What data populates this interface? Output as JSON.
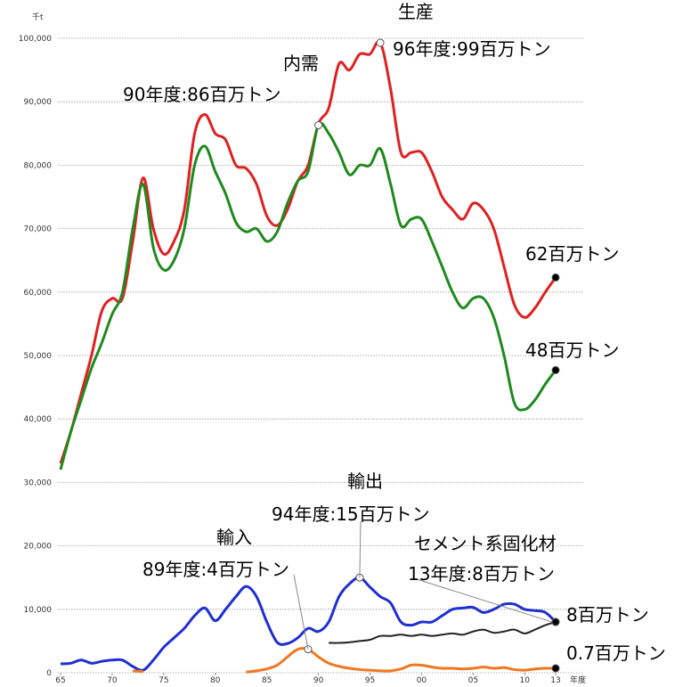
{
  "chart_data": {
    "type": "line",
    "y_axis_label": "千t",
    "x_axis_label": "年度",
    "x": [
      1965,
      1966,
      1967,
      1968,
      1969,
      1970,
      1971,
      1972,
      1973,
      1974,
      1975,
      1976,
      1977,
      1978,
      1979,
      1980,
      1981,
      1982,
      1983,
      1984,
      1985,
      1986,
      1987,
      1988,
      1989,
      1990,
      1991,
      1992,
      1993,
      1994,
      1995,
      1996,
      1997,
      1998,
      1999,
      2000,
      2001,
      2002,
      2003,
      2004,
      2005,
      2006,
      2007,
      2008,
      2009,
      2010,
      2011,
      2012,
      2013
    ],
    "series": [
      {
        "name": "生産",
        "color": "#e02020",
        "values": [
          33000,
          38000,
          44000,
          50000,
          57000,
          59000,
          59000,
          68000,
          78000,
          70000,
          66000,
          68000,
          73000,
          85000,
          88000,
          85000,
          84000,
          80000,
          79500,
          77000,
          72000,
          70500,
          73000,
          77500,
          80000,
          86500,
          89000,
          96000,
          95000,
          97500,
          97500,
          99300,
          92000,
          82000,
          82000,
          82000,
          79000,
          75000,
          73000,
          71500,
          74000,
          73000,
          70000,
          64000,
          58000,
          56000,
          57500,
          60000,
          62300
        ]
      },
      {
        "name": "内需",
        "color": "#1e8a1e",
        "values": [
          32000,
          38000,
          43000,
          48000,
          52000,
          56500,
          60000,
          70000,
          77000,
          67000,
          63500,
          65000,
          70000,
          80000,
          83000,
          79000,
          75500,
          71000,
          69500,
          70000,
          68000,
          69500,
          74000,
          77500,
          79000,
          86300,
          85000,
          82000,
          78500,
          80000,
          80000,
          82600,
          77000,
          70500,
          71500,
          71500,
          68000,
          64000,
          60000,
          57500,
          59000,
          59000,
          56000,
          50000,
          42500,
          41500,
          43000,
          45500,
          47700
        ]
      },
      {
        "name": "輸出",
        "color": "#1f2fd0",
        "values": [
          1400,
          1500,
          2000,
          1500,
          1800,
          2000,
          2000,
          1000,
          400,
          2000,
          4000,
          5500,
          7000,
          9000,
          10200,
          8200,
          10000,
          12000,
          13600,
          12000,
          8000,
          4800,
          4600,
          5500,
          7000,
          6500,
          8000,
          12000,
          14000,
          15000,
          13500,
          12000,
          11000,
          8000,
          7500,
          8000,
          8000,
          9000,
          10000,
          10200,
          10300,
          9500,
          10000,
          10800,
          10800,
          10000,
          9800,
          9500,
          8000
        ]
      },
      {
        "name": "輸入",
        "color": "#f07820",
        "values": [
          null,
          null,
          null,
          null,
          null,
          null,
          null,
          300,
          200,
          null,
          null,
          null,
          null,
          null,
          null,
          null,
          null,
          null,
          100,
          300,
          600,
          1200,
          2500,
          3700,
          3700,
          2500,
          1500,
          1000,
          700,
          500,
          400,
          300,
          300,
          600,
          1200,
          1200,
          900,
          700,
          700,
          600,
          700,
          900,
          700,
          800,
          500,
          400,
          600,
          700,
          700
        ]
      },
      {
        "name": "セメント系固化材",
        "color": "#222222",
        "values": [
          null,
          null,
          null,
          null,
          null,
          null,
          null,
          null,
          null,
          null,
          null,
          null,
          null,
          null,
          null,
          null,
          null,
          null,
          null,
          null,
          null,
          null,
          null,
          null,
          null,
          null,
          4700,
          4700,
          4800,
          5000,
          5200,
          5800,
          5800,
          6000,
          5800,
          6000,
          5800,
          6000,
          6200,
          6000,
          6500,
          6800,
          6300,
          6500,
          6800,
          6200,
          6800,
          7500,
          8000
        ]
      }
    ],
    "annotations": [
      "96年度:99百万トン",
      "90年度:86百万トン",
      "62百万トン",
      "48百万トン",
      "94年度:15百万トン",
      "13年度:8百万トン",
      "89年度:4百万トン",
      "8百万トン",
      "0.7百万トン"
    ],
    "xlim": [
      1965,
      2013
    ],
    "ylim": [
      0,
      100000
    ],
    "yticks": [
      0,
      {
        "value": 10000,
        "label": "10,000"
      },
      {
        "value": 20000,
        "label": "20,000"
      },
      {
        "value": 30000,
        "label": "30,000"
      },
      {
        "value": 40000,
        "label": "40,000"
      },
      {
        "value": 50000,
        "label": "50,000"
      },
      {
        "value": 60000,
        "label": "60,000"
      },
      {
        "value": 70000,
        "label": "70,000"
      },
      {
        "value": 80000,
        "label": "80,000"
      },
      {
        "value": 90000,
        "label": "90,000"
      },
      {
        "value": 100000,
        "label": "100,000"
      }
    ],
    "xticks": [
      {
        "value": 1965,
        "label": "65"
      },
      {
        "value": 1970,
        "label": "70"
      },
      {
        "value": 1975,
        "label": "75"
      },
      {
        "value": 1980,
        "label": "80"
      },
      {
        "value": 1985,
        "label": "85"
      },
      {
        "value": 1990,
        "label": "90"
      },
      {
        "value": 1995,
        "label": "95"
      },
      {
        "value": 2000,
        "label": "00"
      },
      {
        "value": 2005,
        "label": "05"
      },
      {
        "value": 2010,
        "label": "10"
      },
      {
        "value": 2013,
        "label": "13"
      }
    ],
    "grid": true
  }
}
